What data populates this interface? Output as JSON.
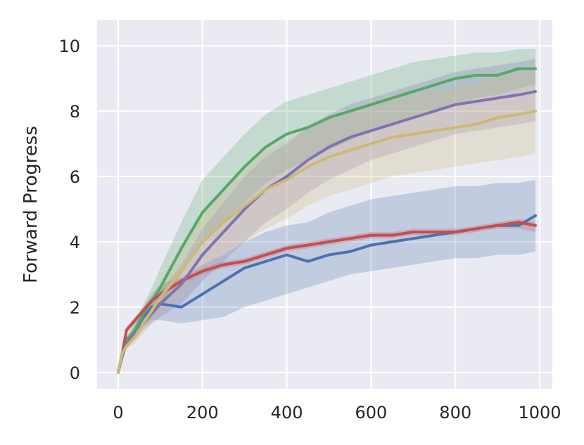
{
  "chart_data": {
    "type": "line",
    "title": "",
    "xlabel": "",
    "ylabel": "Forward Progress",
    "xlim": [
      -50,
      1030
    ],
    "ylim": [
      -0.5,
      10.8
    ],
    "xticks": [
      0,
      200,
      400,
      600,
      800,
      1000
    ],
    "yticks": [
      0,
      2,
      4,
      6,
      8,
      10
    ],
    "xtick_labels": [
      "0",
      "200",
      "400",
      "600",
      "800",
      "1000"
    ],
    "ytick_labels": [
      "0",
      "2",
      "4",
      "6",
      "8",
      "10"
    ],
    "grid": true,
    "legend": "none",
    "background": "#EAEAF2",
    "x": [
      0,
      10,
      20,
      40,
      60,
      80,
      100,
      150,
      200,
      250,
      300,
      350,
      400,
      450,
      500,
      550,
      600,
      650,
      700,
      750,
      800,
      850,
      900,
      950,
      990
    ],
    "series": [
      {
        "color": "#4C72B0",
        "values": [
          0,
          0.5,
          0.9,
          1.3,
          1.7,
          2.0,
          2.1,
          2.0,
          2.4,
          2.8,
          3.2,
          3.4,
          3.6,
          3.4,
          3.6,
          3.7,
          3.9,
          4.0,
          4.1,
          4.2,
          4.3,
          4.4,
          4.5,
          4.5,
          4.8
        ],
        "lower": [
          0,
          0.4,
          0.8,
          1.1,
          1.4,
          1.6,
          1.6,
          1.5,
          1.6,
          1.7,
          2.0,
          2.2,
          2.4,
          2.6,
          2.8,
          3.0,
          3.1,
          3.2,
          3.3,
          3.4,
          3.5,
          3.5,
          3.6,
          3.6,
          3.7
        ],
        "upper": [
          0,
          0.6,
          1.0,
          1.5,
          2.0,
          2.4,
          2.7,
          2.9,
          3.3,
          3.6,
          4.0,
          4.3,
          4.5,
          4.6,
          4.9,
          5.1,
          5.3,
          5.4,
          5.5,
          5.6,
          5.7,
          5.7,
          5.8,
          5.8,
          5.9
        ]
      },
      {
        "color": "#55A868",
        "values": [
          0,
          0.6,
          1.0,
          1.3,
          1.8,
          2.2,
          2.6,
          3.8,
          4.9,
          5.6,
          6.3,
          6.9,
          7.3,
          7.5,
          7.8,
          8.0,
          8.2,
          8.4,
          8.6,
          8.8,
          9.0,
          9.1,
          9.1,
          9.3,
          9.3
        ],
        "lower": [
          0,
          0.5,
          0.9,
          1.1,
          1.5,
          1.8,
          2.1,
          3.0,
          4.0,
          4.6,
          5.2,
          5.8,
          6.2,
          6.5,
          6.8,
          7.1,
          7.4,
          7.6,
          7.8,
          8.0,
          8.2,
          8.4,
          8.5,
          8.7,
          8.8
        ],
        "upper": [
          0,
          0.7,
          1.1,
          1.6,
          2.1,
          2.6,
          3.2,
          4.6,
          5.9,
          6.6,
          7.3,
          7.9,
          8.3,
          8.5,
          8.7,
          8.9,
          9.1,
          9.3,
          9.5,
          9.6,
          9.7,
          9.8,
          9.8,
          9.9,
          9.9
        ]
      },
      {
        "color": "#C44E52",
        "values": [
          0,
          0.6,
          1.3,
          1.6,
          1.9,
          2.2,
          2.4,
          2.8,
          3.1,
          3.3,
          3.4,
          3.6,
          3.8,
          3.9,
          4.0,
          4.1,
          4.2,
          4.2,
          4.3,
          4.3,
          4.3,
          4.4,
          4.5,
          4.6,
          4.5
        ],
        "lower": [
          0,
          0.5,
          1.2,
          1.5,
          1.8,
          2.1,
          2.3,
          2.7,
          3.0,
          3.2,
          3.3,
          3.5,
          3.7,
          3.8,
          3.9,
          4.0,
          4.1,
          4.1,
          4.2,
          4.2,
          4.2,
          4.3,
          4.4,
          4.4,
          4.3
        ],
        "upper": [
          0,
          0.7,
          1.4,
          1.7,
          2.0,
          2.3,
          2.5,
          2.9,
          3.2,
          3.4,
          3.5,
          3.7,
          3.9,
          4.0,
          4.1,
          4.2,
          4.3,
          4.3,
          4.4,
          4.4,
          4.4,
          4.5,
          4.6,
          4.7,
          4.6
        ]
      },
      {
        "color": "#8172B2",
        "values": [
          0,
          0.6,
          0.9,
          1.2,
          1.5,
          1.8,
          2.1,
          2.7,
          3.6,
          4.3,
          5.0,
          5.6,
          6.0,
          6.5,
          6.9,
          7.2,
          7.4,
          7.6,
          7.8,
          8.0,
          8.2,
          8.3,
          8.4,
          8.5,
          8.6
        ],
        "lower": [
          0,
          0.5,
          0.8,
          1.0,
          1.3,
          1.5,
          1.7,
          2.1,
          2.8,
          3.4,
          4.0,
          4.6,
          5.0,
          5.5,
          5.9,
          6.2,
          6.5,
          6.7,
          6.9,
          7.1,
          7.3,
          7.4,
          7.5,
          7.6,
          7.7
        ],
        "upper": [
          0,
          0.7,
          1.0,
          1.4,
          1.8,
          2.1,
          2.5,
          3.3,
          4.4,
          5.2,
          6.0,
          6.6,
          7.0,
          7.5,
          7.9,
          8.2,
          8.4,
          8.6,
          8.8,
          9.0,
          9.2,
          9.3,
          9.4,
          9.5,
          9.6
        ]
      },
      {
        "color": "#CCB974",
        "values": [
          0,
          0.6,
          0.8,
          1.1,
          1.5,
          1.9,
          2.3,
          3.1,
          4.0,
          4.6,
          5.1,
          5.6,
          5.9,
          6.3,
          6.6,
          6.8,
          7.0,
          7.2,
          7.3,
          7.4,
          7.5,
          7.6,
          7.8,
          7.9,
          8.0
        ],
        "lower": [
          0,
          0.5,
          0.7,
          0.9,
          1.2,
          1.5,
          1.8,
          2.4,
          3.1,
          3.6,
          4.0,
          4.4,
          4.7,
          5.1,
          5.4,
          5.6,
          5.8,
          6.0,
          6.1,
          6.2,
          6.3,
          6.4,
          6.5,
          6.6,
          6.7
        ],
        "upper": [
          0,
          0.7,
          0.9,
          1.3,
          1.8,
          2.3,
          2.8,
          3.8,
          4.9,
          5.6,
          6.2,
          6.8,
          7.1,
          7.5,
          7.8,
          8.0,
          8.2,
          8.4,
          8.5,
          8.6,
          8.7,
          8.8,
          9.1,
          9.2,
          9.3
        ]
      }
    ]
  }
}
